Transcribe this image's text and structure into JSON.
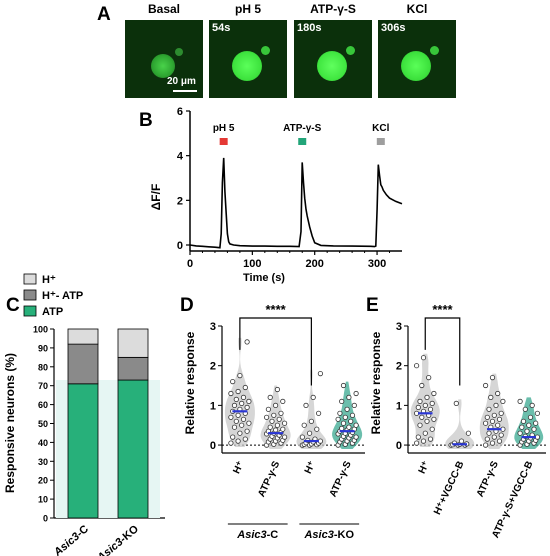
{
  "panels": {
    "a": "A",
    "b": "B",
    "c": "C",
    "d": "D",
    "e": "E"
  },
  "panel_a": {
    "images": [
      {
        "title": "Basal",
        "time": ""
      },
      {
        "title": "pH 5",
        "time": "54s"
      },
      {
        "title": "ATP-γ-S",
        "time": "180s"
      },
      {
        "title": "KCl",
        "time": "306s"
      }
    ],
    "scale_label": "20 μm"
  },
  "colors": {
    "bg_image": "#0b300b",
    "cell": "#2fd83a",
    "acid": "#e53935",
    "atp": "#22a579",
    "kcl": "#9e9e9e",
    "green": "#27b07a",
    "gray_dark": "#8a8a8a",
    "gray_light": "#dcdcdc",
    "violin_gray": "#c8c8c8",
    "violin_green": "#3aa890",
    "mean_blue": "#2a36d4",
    "sig": "#000000"
  },
  "chart_data": [
    {
      "type": "line",
      "panel": "B",
      "xlabel": "Time (s)",
      "ylabel": "ΔF/F",
      "xlim": [
        0,
        340
      ],
      "ylim": [
        0,
        6
      ],
      "xticks": [
        "0",
        "100",
        "200",
        "300"
      ],
      "yticks": [
        "0",
        "2",
        "4",
        "6"
      ],
      "stimuli": [
        {
          "label": "pH 5",
          "x": 54,
          "color": "#e53935"
        },
        {
          "label": "ATP-γ-S",
          "x": 180,
          "color": "#22a579"
        },
        {
          "label": "KCl",
          "x": 306,
          "color": "#9e9e9e"
        }
      ],
      "x": [
        0,
        10,
        20,
        30,
        40,
        48,
        50,
        52,
        54,
        56,
        58,
        60,
        62,
        64,
        70,
        80,
        100,
        120,
        140,
        160,
        175,
        178,
        180,
        182,
        184,
        186,
        188,
        192,
        196,
        200,
        210,
        230,
        260,
        290,
        296,
        298,
        300,
        302,
        304,
        306,
        308,
        310,
        315,
        320,
        330,
        340
      ],
      "y": [
        0,
        -0.04,
        -0.06,
        -0.08,
        -0.1,
        -0.12,
        0.5,
        2.8,
        3.9,
        2.4,
        1.4,
        0.5,
        0.15,
        0.05,
        0.0,
        -0.03,
        -0.05,
        -0.05,
        -0.06,
        -0.06,
        -0.07,
        0.6,
        3.7,
        2.8,
        2.1,
        1.6,
        1.3,
        0.8,
        0.4,
        0.1,
        -0.02,
        -0.04,
        -0.05,
        -0.06,
        -0.07,
        -0.05,
        1.6,
        3.6,
        3.1,
        2.7,
        2.6,
        2.45,
        2.25,
        2.1,
        1.95,
        1.85
      ]
    },
    {
      "type": "bar",
      "panel": "C",
      "ylabel": "Responsive neurons (%)",
      "ylim": [
        0,
        100
      ],
      "yticks": [
        "0",
        "10",
        "20",
        "30",
        "40",
        "50",
        "60",
        "70",
        "80",
        "90",
        "100"
      ],
      "categories": [
        "Asic3-C",
        "Asic3-KO"
      ],
      "category_parts": [
        [
          "Asic3",
          "-C"
        ],
        [
          "Asic3",
          "-KO"
        ]
      ],
      "series": [
        {
          "name": "ATP",
          "values": [
            71,
            73
          ],
          "color": "#27b07a"
        },
        {
          "name": "H⁺- ATP",
          "values": [
            21,
            12
          ],
          "color": "#8a8a8a"
        },
        {
          "name": "H⁺",
          "values": [
            8,
            15
          ],
          "color": "#dcdcdc"
        }
      ],
      "legend": [
        "H⁺",
        "H⁺- ATP",
        "ATP"
      ]
    },
    {
      "type": "scatter",
      "panel": "D",
      "ylabel": "Relative response",
      "ylim": [
        -0.2,
        3.0
      ],
      "yticks": [
        "0",
        "1",
        "2",
        "3"
      ],
      "categories": [
        "H⁺",
        "ATP-γ-S",
        "H⁺",
        "ATP-γ-S"
      ],
      "group_labels": [
        [
          "Asic3",
          "-C"
        ],
        [
          "Asic3",
          "-KO"
        ]
      ],
      "significance": {
        "pair": [
          0,
          2
        ],
        "label": "****"
      },
      "groups": [
        {
          "mean": 0.85,
          "color": "gray",
          "values": [
            0.05,
            0.1,
            0.15,
            0.2,
            0.3,
            0.35,
            0.45,
            0.5,
            0.55,
            0.6,
            0.65,
            0.7,
            0.75,
            0.8,
            0.85,
            0.9,
            0.95,
            1.0,
            1.05,
            1.1,
            1.15,
            1.2,
            1.3,
            1.35,
            1.45,
            1.6,
            1.75,
            2.6
          ]
        },
        {
          "mean": 0.3,
          "color": "gray",
          "values": [
            0.0,
            0.02,
            0.05,
            0.08,
            0.1,
            0.12,
            0.15,
            0.18,
            0.2,
            0.22,
            0.25,
            0.28,
            0.3,
            0.32,
            0.35,
            0.38,
            0.4,
            0.45,
            0.5,
            0.55,
            0.6,
            0.65,
            0.7,
            0.75,
            0.8,
            0.9,
            1.0,
            1.1,
            1.2,
            1.4
          ]
        },
        {
          "mean": 0.1,
          "color": "gray",
          "values": [
            0.0,
            0.0,
            0.01,
            0.02,
            0.03,
            0.05,
            0.06,
            0.08,
            0.1,
            0.12,
            0.15,
            0.2,
            0.3,
            0.4,
            0.5,
            0.6,
            0.8,
            1.0,
            1.2,
            1.8
          ]
        },
        {
          "mean": 0.35,
          "color": "green",
          "values": [
            0.0,
            0.02,
            0.05,
            0.08,
            0.1,
            0.12,
            0.15,
            0.18,
            0.2,
            0.22,
            0.25,
            0.28,
            0.3,
            0.32,
            0.35,
            0.38,
            0.4,
            0.42,
            0.45,
            0.5,
            0.55,
            0.6,
            0.65,
            0.7,
            0.75,
            0.8,
            0.9,
            1.0,
            1.1,
            1.2,
            1.3,
            1.5
          ]
        }
      ]
    },
    {
      "type": "scatter",
      "panel": "E",
      "ylabel": "Relative response",
      "ylim": [
        -0.2,
        3.0
      ],
      "yticks": [
        "0",
        "1",
        "2",
        "3"
      ],
      "categories": [
        "H⁺",
        "H⁺+VGCC-B",
        "ATP-γ-S",
        "ATP-γ-S+VGCC-B"
      ],
      "significance": {
        "pair": [
          0,
          1
        ],
        "label": "****"
      },
      "groups": [
        {
          "mean": 0.8,
          "color": "gray",
          "values": [
            0.05,
            0.1,
            0.15,
            0.2,
            0.3,
            0.4,
            0.5,
            0.6,
            0.65,
            0.7,
            0.75,
            0.8,
            0.85,
            0.9,
            0.95,
            1.0,
            1.05,
            1.1,
            1.2,
            1.3,
            1.5,
            1.7,
            2.0,
            2.2
          ]
        },
        {
          "mean": 0.02,
          "color": "gray",
          "values": [
            0.0,
            0.0,
            0.0,
            0.01,
            0.02,
            0.03,
            0.05,
            0.1,
            0.3,
            1.05
          ]
        },
        {
          "mean": 0.4,
          "color": "gray",
          "values": [
            0.0,
            0.05,
            0.1,
            0.15,
            0.2,
            0.25,
            0.3,
            0.35,
            0.4,
            0.45,
            0.5,
            0.55,
            0.6,
            0.65,
            0.7,
            0.75,
            0.8,
            0.9,
            1.0,
            1.1,
            1.2,
            1.3,
            1.5,
            1.7
          ]
        },
        {
          "mean": 0.2,
          "color": "green",
          "values": [
            0.0,
            0.02,
            0.05,
            0.08,
            0.1,
            0.12,
            0.15,
            0.18,
            0.2,
            0.22,
            0.25,
            0.3,
            0.35,
            0.4,
            0.45,
            0.5,
            0.55,
            0.6,
            0.7,
            0.8,
            0.9,
            1.0,
            1.1
          ]
        }
      ]
    }
  ]
}
